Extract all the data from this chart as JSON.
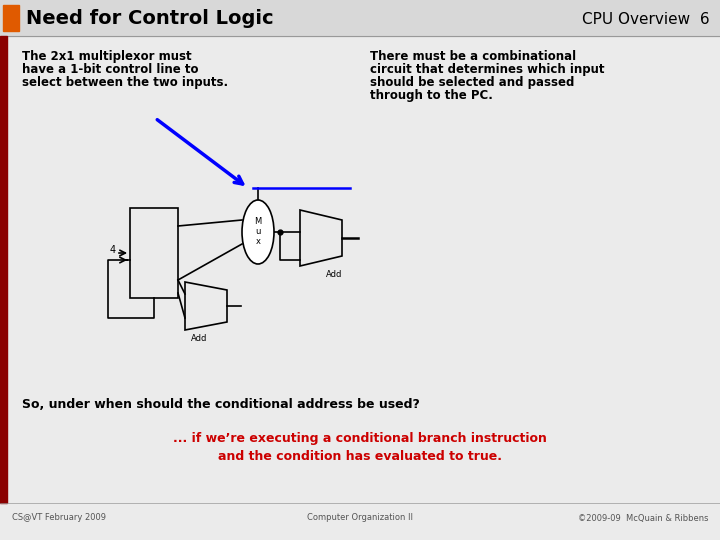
{
  "title": "Need for Control Logic",
  "subtitle_right": "CPU Overview  6",
  "title_color": "#000000",
  "header_bar_color": "#E05A00",
  "header_bg": "#D8D8D8",
  "left_bar_color": "#8B0000",
  "footer_left": "CS@VT February 2009",
  "footer_center": "Computer Organization II",
  "footer_right": "©2009-09  McQuain & Ribbens",
  "text_left_1": "The 2x1 multiplexor must",
  "text_left_2": "have a 1-bit control line to",
  "text_left_3": "select between the two inputs.",
  "text_right_1": "There must be a combinational",
  "text_right_2": "circuit that determines which input",
  "text_right_3": "should be selected and passed",
  "text_right_4": "through to the PC.",
  "question_text": "So, under when should the conditional address be used?",
  "answer_line1": "... if we’re executing a conditional branch instruction",
  "answer_line2": "and the condition has evaluated to true.",
  "answer_color": "#CC0000",
  "bg_color": "#EBEBEB"
}
